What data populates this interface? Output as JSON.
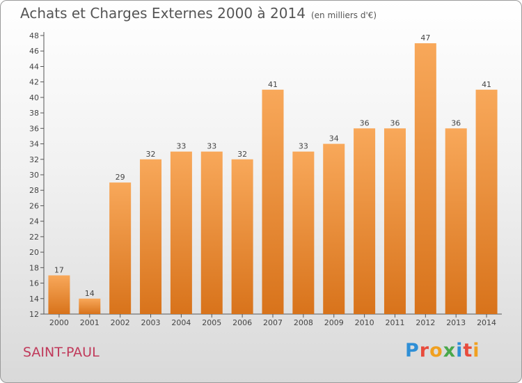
{
  "header": {
    "title": "Achats et Charges Externes 2000 à 2014",
    "unit": "(en milliers d'€)"
  },
  "footer": {
    "location": "SAINT-PAUL",
    "brand": "Proxiti"
  },
  "colors": {
    "bar_light": "#f8a85a",
    "bar_dark": "#d8731b",
    "axis": "#555555",
    "location": "#c0395a"
  },
  "chart_data": {
    "type": "bar",
    "title": "Achats et Charges Externes 2000 à 2014",
    "subtitle": "(en milliers d'€)",
    "xlabel": "",
    "ylabel": "",
    "categories": [
      "2000",
      "2001",
      "2002",
      "2003",
      "2004",
      "2005",
      "2006",
      "2007",
      "2008",
      "2009",
      "2010",
      "2011",
      "2012",
      "2013",
      "2014"
    ],
    "values": [
      17,
      14,
      29,
      32,
      33,
      33,
      32,
      41,
      33,
      34,
      36,
      36,
      47,
      36,
      41
    ],
    "ylim": [
      12,
      48
    ],
    "yticks": [
      12,
      14,
      16,
      18,
      20,
      22,
      24,
      26,
      28,
      30,
      32,
      34,
      36,
      38,
      40,
      42,
      44,
      46,
      48
    ],
    "grid": false,
    "legend": "none",
    "data_labels": true
  }
}
